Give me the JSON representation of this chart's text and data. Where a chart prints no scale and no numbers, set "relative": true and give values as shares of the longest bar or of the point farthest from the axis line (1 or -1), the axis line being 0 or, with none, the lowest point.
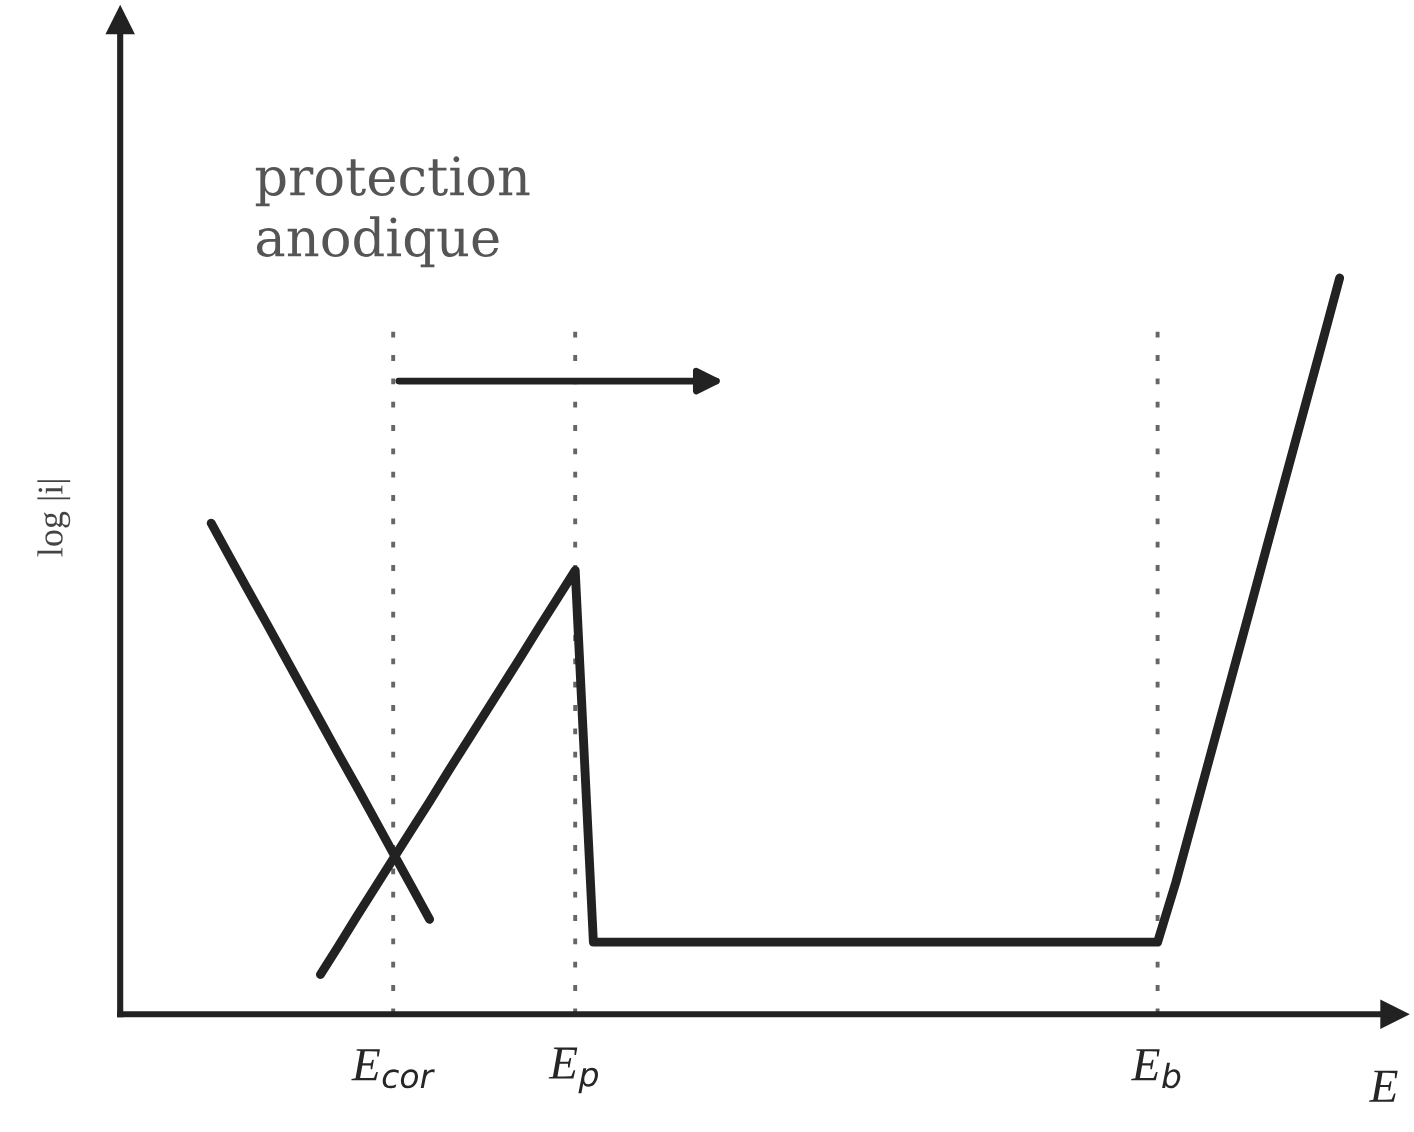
{
  "chart_data": {
    "type": "line",
    "relative": true,
    "xlabel": "E",
    "ylabel": "log |i|",
    "categories": [
      null,
      null,
      null,
      null,
      null,
      null,
      null,
      null,
      null,
      null,
      null,
      null,
      null,
      null,
      "E$_{cor}$",
      null,
      null,
      null,
      null,
      null,
      null,
      null,
      null,
      null,
      "E$_{p}$",
      null,
      null,
      null,
      null,
      null,
      null,
      null,
      null,
      null,
      null,
      null,
      null,
      null,
      null,
      null,
      null,
      null,
      null,
      null,
      null,
      null,
      null,
      null,
      null,
      null,
      null,
      null,
      null,
      null,
      null,
      null,
      "E$_{b}$",
      null,
      null,
      null,
      null,
      null,
      null,
      null,
      null,
      null,
      null,
      null,
      null
    ],
    "series": [
      {
        "color": "#222222",
        "values": [
          null,
          null,
          null,
          null,
          0.667,
          0.622,
          0.577,
          0.533,
          0.488,
          0.443,
          0.398,
          0.353,
          0.309,
          0.264,
          0.219,
          0.174,
          0.129,
          null,
          null,
          null,
          null,
          null,
          null,
          null,
          null,
          null,
          null,
          null,
          null,
          null,
          null,
          null,
          null,
          null,
          null,
          null,
          null,
          null,
          null,
          null,
          null,
          null,
          null,
          null,
          null,
          null,
          null,
          null,
          null,
          null,
          null,
          null,
          null,
          null,
          null,
          null,
          null,
          null,
          null,
          null,
          null,
          null,
          null,
          null,
          null,
          null,
          null,
          null,
          null
        ]
      },
      {
        "color": "#222222",
        "values": [
          null,
          null,
          null,
          null,
          null,
          null,
          null,
          null,
          null,
          null,
          0.054,
          0.093,
          0.133,
          0.172,
          0.211,
          0.25,
          0.289,
          0.329,
          0.368,
          0.407,
          0.446,
          0.485,
          0.525,
          0.564,
          0.603,
          0.098,
          0.098,
          0.098,
          0.098,
          0.098,
          0.098,
          0.098,
          0.098,
          0.098,
          0.098,
          0.098,
          0.098,
          0.098,
          0.098,
          0.098,
          0.098,
          0.098,
          0.098,
          0.098,
          0.098,
          0.098,
          0.098,
          0.098,
          0.098,
          0.098,
          0.098,
          0.098,
          0.098,
          0.098,
          0.098,
          0.098,
          0.098,
          0.179,
          0.27,
          0.361,
          0.452,
          0.543,
          0.635,
          0.726,
          0.817,
          0.908,
          1,
          null,
          null
        ]
      }
    ],
    "ref_lines": [
      {
        "axis": "x",
        "value": "E$_{cor}$",
        "line_style": "dotted",
        "color": "#666666"
      },
      {
        "axis": "x",
        "value": "E$_{p}$",
        "line_style": "dotted",
        "color": "#666666"
      },
      {
        "axis": "x",
        "value": "E$_{b}$",
        "line_style": "dotted",
        "color": "#666666"
      }
    ],
    "annotations": [
      {
        "text": "protection\nanodique",
        "x": "E$_{cor}$",
        "y": 0.86
      }
    ],
    "line_style": "solid"
  }
}
